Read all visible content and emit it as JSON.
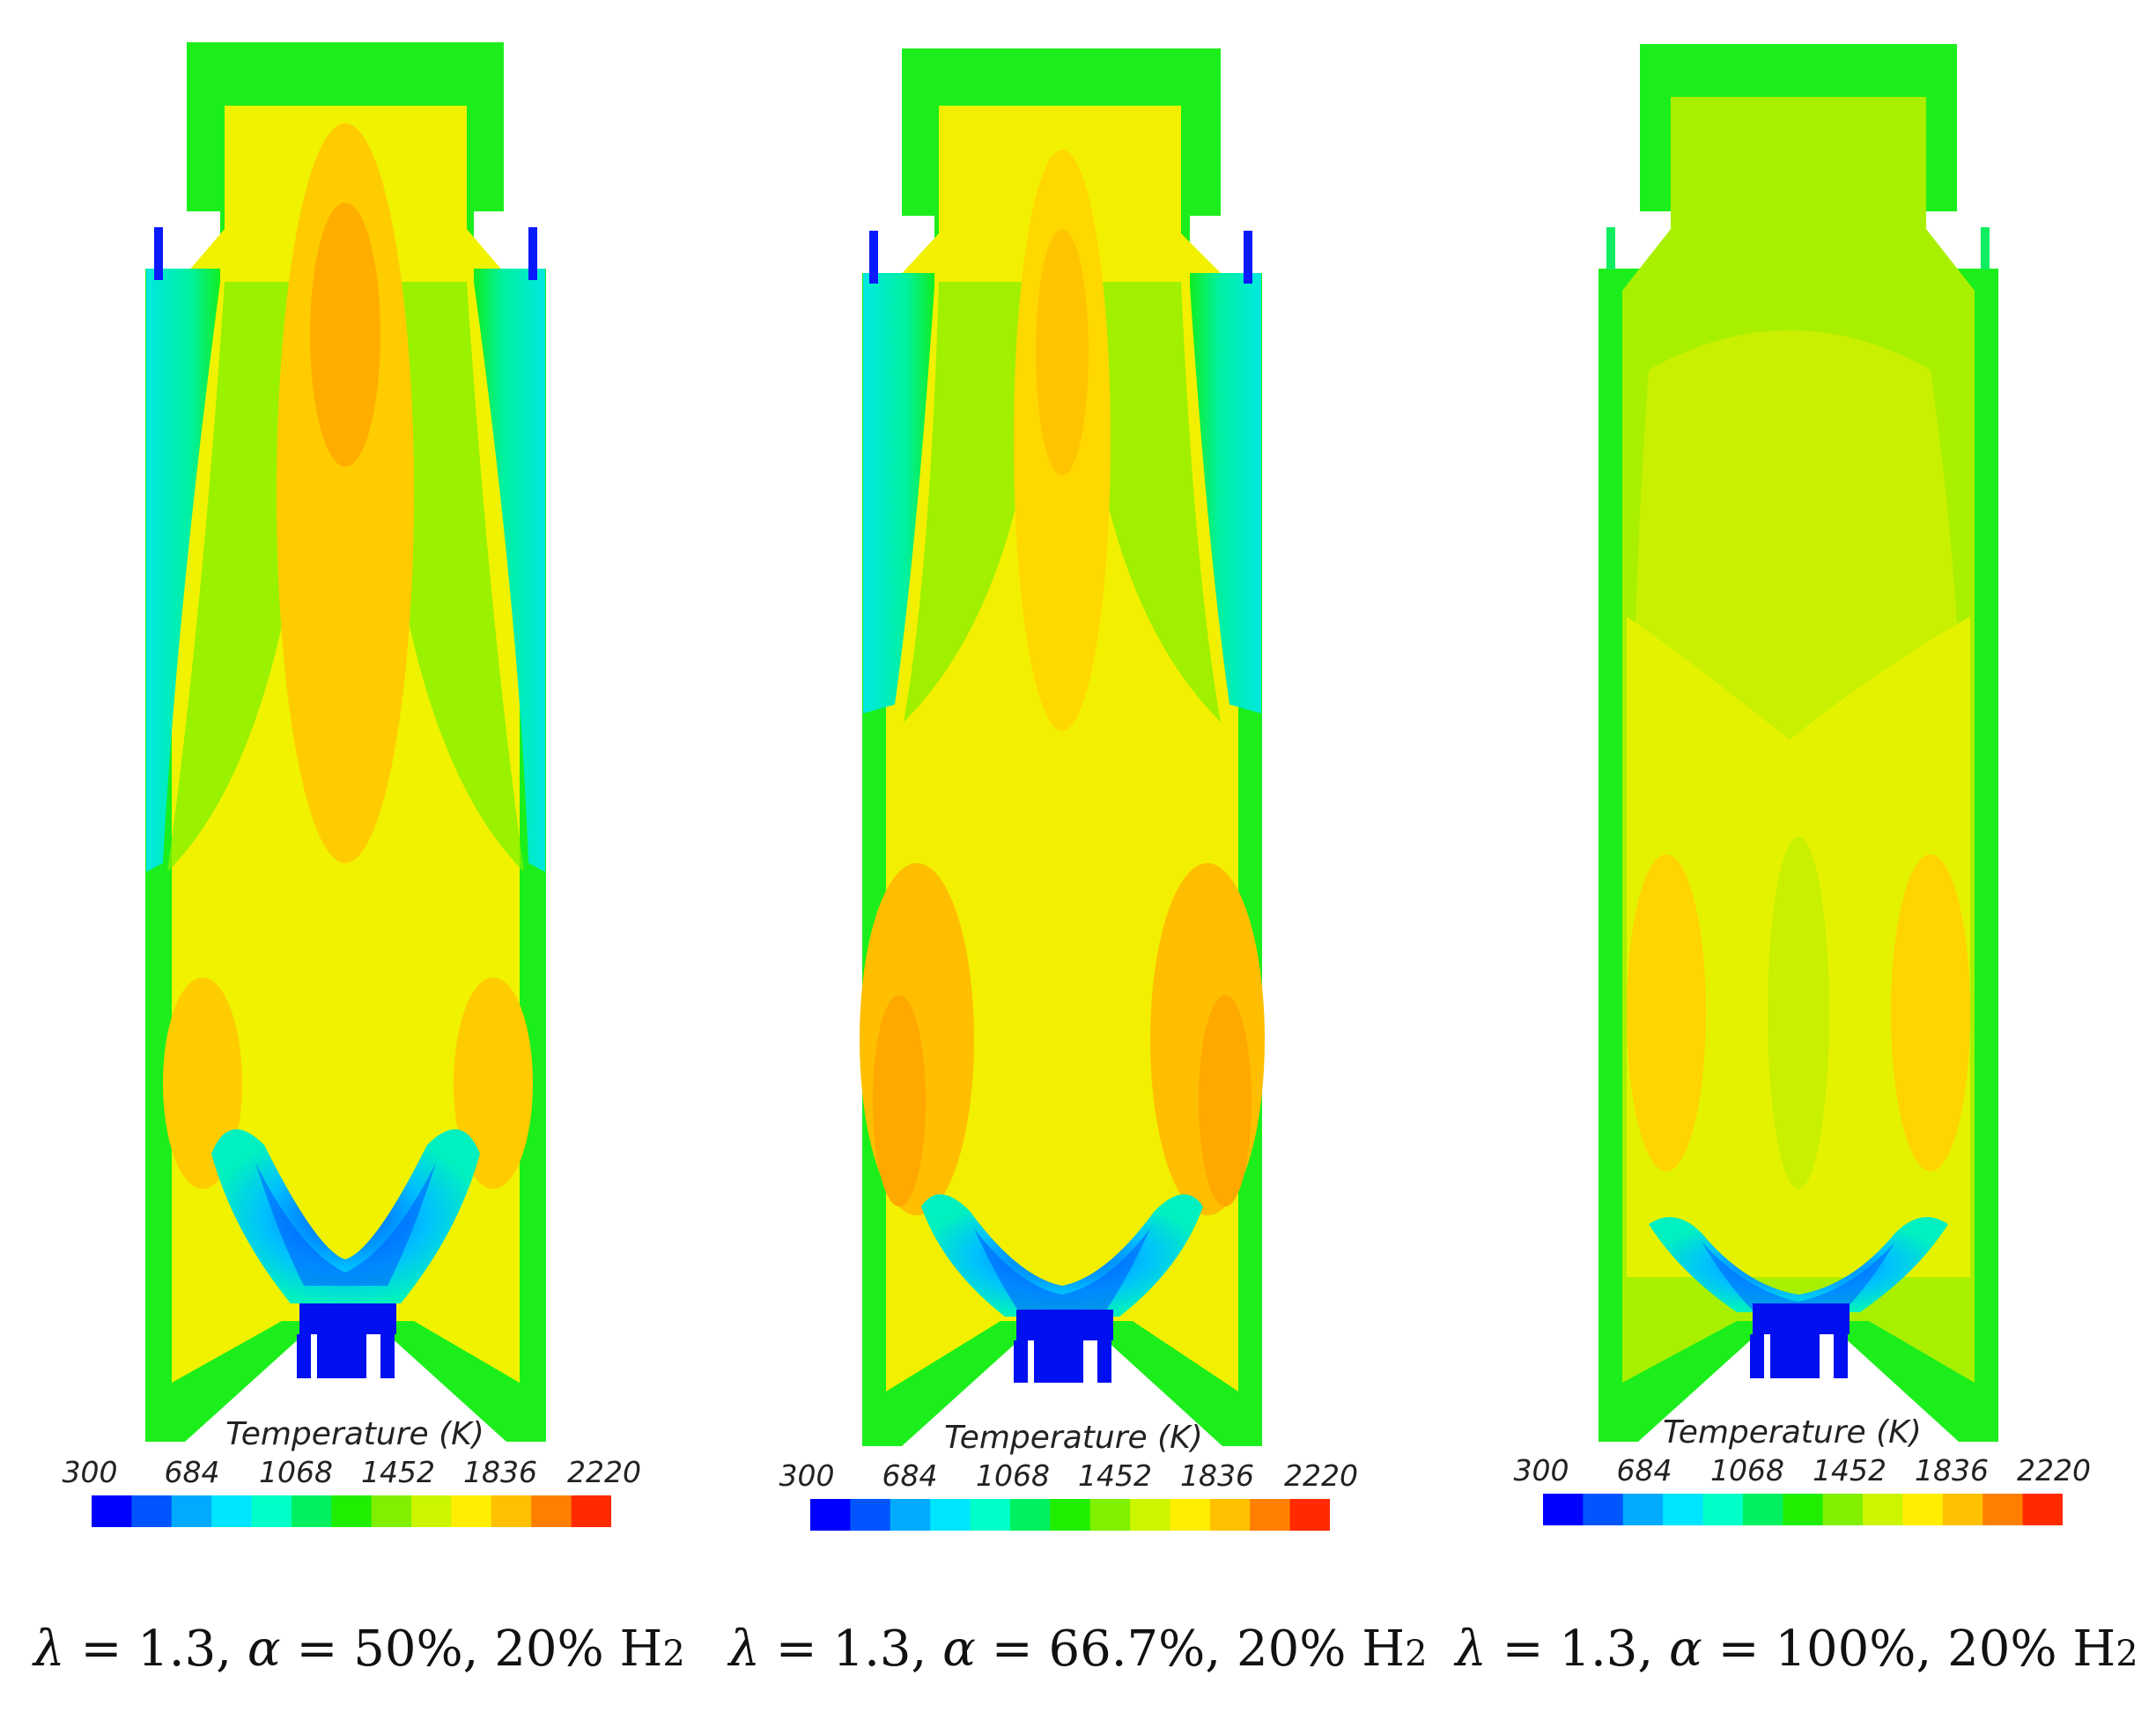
{
  "colorbar": {
    "title": "Temperature (K)",
    "ticks": [
      "300",
      "684",
      "1068",
      "1452",
      "1836",
      "2220"
    ],
    "colors": [
      "#0000ff",
      "#0055ff",
      "#00aaff",
      "#00e5ff",
      "#00ffc8",
      "#00f060",
      "#20ee00",
      "#80f000",
      "#ccf500",
      "#ffee00",
      "#ffc000",
      "#ff8000",
      "#ff2a00"
    ]
  },
  "panels": [
    {
      "caption": {
        "lambda_sym": "λ",
        "lambda_val": " = 1.3, ",
        "alpha_sym": "α",
        "alpha_val": " = 50%, 20% H",
        "sub": "2"
      },
      "field": {
        "core": "#ffd400",
        "bulk": "#f2f200",
        "vflame": "#2aa8ff"
      }
    },
    {
      "caption": {
        "lambda_sym": "λ",
        "lambda_val": " = 1.3, ",
        "alpha_sym": "α",
        "alpha_val": " = 66.7%, 20% H",
        "sub": "2"
      },
      "field": {
        "core": "#ffe000",
        "bulk": "#f4f000",
        "vflame": "#2aa8ff"
      }
    },
    {
      "caption": {
        "lambda_sym": "λ",
        "lambda_val": " = 1.3, ",
        "alpha_sym": "α",
        "alpha_val": " = 100%, 20% H",
        "sub": "2"
      },
      "field": {
        "core": "#c8f000",
        "bulk": "#d8f200",
        "vflame": "#2aa8ff"
      }
    }
  ]
}
